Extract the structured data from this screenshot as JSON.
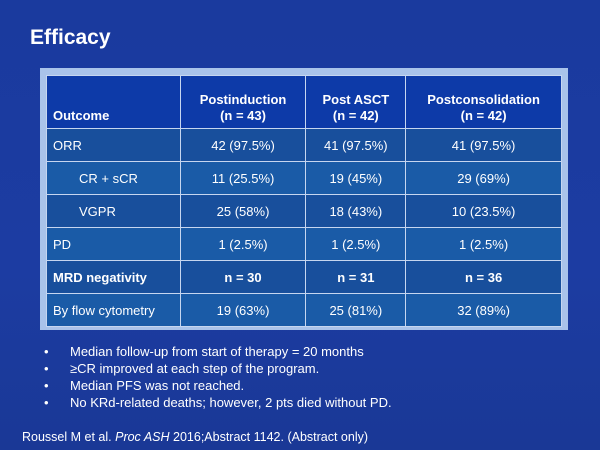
{
  "slide": {
    "title": "Efficacy"
  },
  "table": {
    "headers": [
      {
        "line1": "",
        "line2": "Outcome"
      },
      {
        "line1": "Postinduction",
        "line2": "(n = 43)"
      },
      {
        "line1": "Post ASCT",
        "line2": "(n = 42)"
      },
      {
        "line1": "Postconsolidation",
        "line2": "(n = 42)"
      }
    ],
    "rows": [
      {
        "label": "ORR",
        "values": [
          "42 (97.5%)",
          "41 (97.5%)",
          "41 (97.5%)"
        ]
      },
      {
        "label": "CR + sCR",
        "values": [
          "11 (25.5%)",
          "19 (45%)",
          "29 (69%)"
        ]
      },
      {
        "label": "VGPR",
        "values": [
          "25 (58%)",
          "18 (43%)",
          "10 (23.5%)"
        ]
      },
      {
        "label": "PD",
        "values": [
          "1 (2.5%)",
          "1 (2.5%)",
          "1 (2.5%)"
        ]
      },
      {
        "label": "MRD negativity",
        "values": [
          "n = 30",
          "n = 31",
          "n = 36"
        ]
      },
      {
        "label": "By flow cytometry",
        "values": [
          "19 (63%)",
          "25 (81%)",
          "32 (89%)"
        ]
      }
    ]
  },
  "bullets": [
    "Median follow-up from start of therapy = 20 months",
    "≥CR improved at each step of the program.",
    "Median PFS was not reached.",
    "No KRd-related deaths; however, 2 pts died without PD."
  ],
  "bullet_glyph": "•",
  "citation": {
    "authors": "Roussel M et al.",
    "journal": "Proc ASH",
    "details": "2016;Abstract 1142. (Abstract only)"
  }
}
